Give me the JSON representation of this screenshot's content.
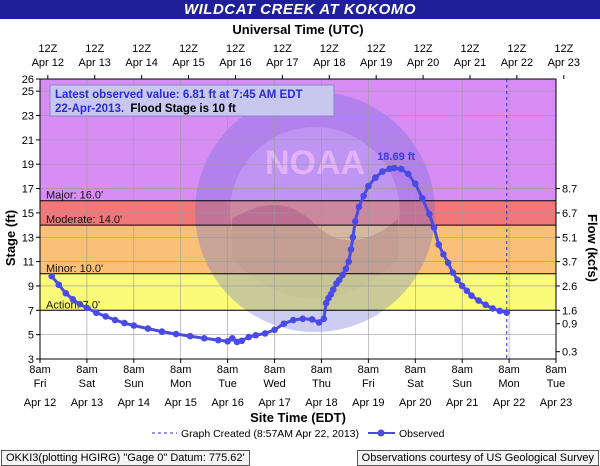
{
  "title": "WILDCAT CREEK AT KOKOMO",
  "chart_data": {
    "type": "line",
    "top_axis_title": "Universal Time (UTC)",
    "top_ticks": [
      {
        "l1": "12Z",
        "l2": "Apr 12"
      },
      {
        "l1": "12Z",
        "l2": "Apr 13"
      },
      {
        "l1": "12Z",
        "l2": "Apr 14"
      },
      {
        "l1": "12Z",
        "l2": "Apr 15"
      },
      {
        "l1": "12Z",
        "l2": "Apr 16"
      },
      {
        "l1": "12Z",
        "l2": "Apr 17"
      },
      {
        "l1": "12Z",
        "l2": "Apr 18"
      },
      {
        "l1": "12Z",
        "l2": "Apr 19"
      },
      {
        "l1": "12Z",
        "l2": "Apr 20"
      },
      {
        "l1": "12Z",
        "l2": "Apr 21"
      },
      {
        "l1": "12Z",
        "l2": "Apr 22"
      },
      {
        "l1": "12Z",
        "l2": "Apr 23"
      }
    ],
    "bottom_ticks": [
      {
        "l1": "8am",
        "l2": "Fri",
        "l3": "Apr 12"
      },
      {
        "l1": "8am",
        "l2": "Sat",
        "l3": "Apr 13"
      },
      {
        "l1": "8am",
        "l2": "Sun",
        "l3": "Apr 14"
      },
      {
        "l1": "8am",
        "l2": "Mon",
        "l3": "Apr 15"
      },
      {
        "l1": "8am",
        "l2": "Tue",
        "l3": "Apr 16"
      },
      {
        "l1": "8am",
        "l2": "Wed",
        "l3": "Apr 17"
      },
      {
        "l1": "8am",
        "l2": "Thu",
        "l3": "Apr 18"
      },
      {
        "l1": "8am",
        "l2": "Fri",
        "l3": "Apr 19"
      },
      {
        "l1": "8am",
        "l2": "Sat",
        "l3": "Apr 20"
      },
      {
        "l1": "8am",
        "l2": "Sun",
        "l3": "Apr 21"
      },
      {
        "l1": "8am",
        "l2": "Mon",
        "l3": "Apr 22"
      },
      {
        "l1": "8am",
        "l2": "Tue",
        "l3": "Apr 23"
      }
    ],
    "xlabel": "Site Time (EDT)",
    "ylabel": "Stage (ft)",
    "y2label": "Flow (kcfs)",
    "ylim": [
      3,
      26
    ],
    "yticks": [
      3,
      5,
      7,
      9,
      11,
      13,
      15,
      17,
      19,
      21,
      23,
      25,
      26
    ],
    "flow_ticks": [
      {
        "stage": 3.6,
        "label": "0.3"
      },
      {
        "stage": 5.9,
        "label": "0.9"
      },
      {
        "stage": 7.0,
        "label": "1.6"
      },
      {
        "stage": 9.0,
        "label": "2.6"
      },
      {
        "stage": 11.0,
        "label": "3.7"
      },
      {
        "stage": 13.0,
        "label": "5.1"
      },
      {
        "stage": 15.0,
        "label": "6.7"
      },
      {
        "stage": 17.0,
        "label": "8.7"
      }
    ],
    "flood_bands": [
      {
        "label": "Major: 16.0'",
        "from": 16,
        "to": 26,
        "color": "#d88df5"
      },
      {
        "label": "Moderate: 14.0'",
        "from": 14,
        "to": 16,
        "color": "#f07878"
      },
      {
        "label": "Minor: 10.0'",
        "from": 10,
        "to": 14,
        "color": "#fbc078"
      },
      {
        "label": "Action: 7.0'",
        "from": 7,
        "to": 10,
        "color": "#fbfb7a"
      }
    ],
    "annotation": {
      "line1": "Latest observed value: 6.81 ft at 7:45 AM EDT",
      "line2a": "22-Apr-2013.",
      "line2b": "  Flood Stage is 10 ft"
    },
    "peak_label": "18.69 ft",
    "peak": {
      "day": 7.55,
      "value": 18.69
    },
    "legend": {
      "created": "Graph Created (8:57AM Apr 22, 2013)",
      "observed": "Observed"
    },
    "graph_created_day": 9.95,
    "observed": [
      [
        0.25,
        9.8
      ],
      [
        0.4,
        9.1
      ],
      [
        0.55,
        8.4
      ],
      [
        0.7,
        7.9
      ],
      [
        0.85,
        7.5
      ],
      [
        1.0,
        7.2
      ],
      [
        1.2,
        6.8
      ],
      [
        1.4,
        6.5
      ],
      [
        1.6,
        6.2
      ],
      [
        1.8,
        5.95
      ],
      [
        2.0,
        5.75
      ],
      [
        2.3,
        5.5
      ],
      [
        2.6,
        5.25
      ],
      [
        2.9,
        5.05
      ],
      [
        3.2,
        4.88
      ],
      [
        3.5,
        4.7
      ],
      [
        3.8,
        4.55
      ],
      [
        4.0,
        4.45
      ],
      [
        4.1,
        4.7
      ],
      [
        4.2,
        4.4
      ],
      [
        4.3,
        4.5
      ],
      [
        4.45,
        4.8
      ],
      [
        4.6,
        4.95
      ],
      [
        4.8,
        5.1
      ],
      [
        5.0,
        5.4
      ],
      [
        5.2,
        5.9
      ],
      [
        5.4,
        6.2
      ],
      [
        5.6,
        6.3
      ],
      [
        5.8,
        6.25
      ],
      [
        5.95,
        6.0
      ],
      [
        6.05,
        6.3
      ],
      [
        6.1,
        7.6
      ],
      [
        6.15,
        8.0
      ],
      [
        6.2,
        8.3
      ],
      [
        6.25,
        8.7
      ],
      [
        6.32,
        9.2
      ],
      [
        6.38,
        9.5
      ],
      [
        6.45,
        9.9
      ],
      [
        6.52,
        10.4
      ],
      [
        6.58,
        11.0
      ],
      [
        6.63,
        12.0
      ],
      [
        6.67,
        13.0
      ],
      [
        6.72,
        14.3
      ],
      [
        6.8,
        15.5
      ],
      [
        6.9,
        16.4
      ],
      [
        7.0,
        17.2
      ],
      [
        7.15,
        17.9
      ],
      [
        7.3,
        18.4
      ],
      [
        7.45,
        18.62
      ],
      [
        7.55,
        18.69
      ],
      [
        7.7,
        18.6
      ],
      [
        7.85,
        18.2
      ],
      [
        8.0,
        17.4
      ],
      [
        8.15,
        16.2
      ],
      [
        8.3,
        14.9
      ],
      [
        8.4,
        13.8
      ],
      [
        8.5,
        12.4
      ],
      [
        8.6,
        11.6
      ],
      [
        8.7,
        10.9
      ],
      [
        8.8,
        10.1
      ],
      [
        8.9,
        9.5
      ],
      [
        9.0,
        9.0
      ],
      [
        9.1,
        8.6
      ],
      [
        9.2,
        8.2
      ],
      [
        9.35,
        7.8
      ],
      [
        9.5,
        7.45
      ],
      [
        9.65,
        7.15
      ],
      [
        9.8,
        6.95
      ],
      [
        9.95,
        6.81
      ]
    ]
  },
  "footer": {
    "left": "OKKI3(plotting HGIRG) \"Gage 0\" Datum: 775.62'",
    "right": "Observations courtesy of US Geological Survey"
  }
}
